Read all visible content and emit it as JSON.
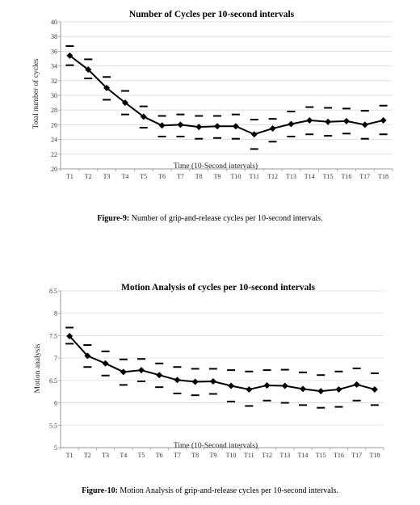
{
  "charts": [
    {
      "caption_label": "Figure-9:",
      "caption_text": " Number of grip-and-release cycles per 10-second intervals."
    },
    {
      "caption_label": "Figure-10:",
      "caption_text": " Motion Analysis of grip-and-release cycles per 10-second intervals."
    }
  ],
  "chart_data": [
    {
      "type": "line",
      "title": "Number of Cycles per 10-second intervals",
      "xlabel": "Time (10-Second intervals)",
      "ylabel": "Total number of cycles",
      "categories": [
        "T1",
        "T2",
        "T3",
        "T4",
        "T5",
        "T6",
        "T7",
        "T8",
        "T9",
        "T10",
        "T11",
        "T12",
        "T13",
        "T14",
        "T15",
        "T16",
        "T17",
        "T18"
      ],
      "ylim": [
        20,
        40
      ],
      "yticks": [
        20,
        22,
        24,
        26,
        28,
        30,
        32,
        34,
        36,
        38,
        40
      ],
      "ytick_labels": [
        "20",
        "22",
        "24",
        "26",
        "28",
        "30",
        "32",
        "34",
        "36",
        "38",
        "40"
      ],
      "grid": true,
      "series": [
        {
          "values": [
            35.4,
            33.5,
            31.0,
            29.0,
            27.1,
            25.9,
            26.0,
            25.7,
            25.8,
            25.8,
            24.7,
            25.5,
            26.1,
            26.6,
            26.4,
            26.5,
            26.0,
            26.6
          ],
          "upper": [
            36.7,
            34.9,
            32.5,
            30.6,
            28.5,
            27.2,
            27.4,
            27.2,
            27.2,
            27.4,
            26.7,
            26.8,
            27.8,
            28.4,
            28.3,
            28.2,
            27.9,
            28.6
          ],
          "lower": [
            34.1,
            32.3,
            29.4,
            27.4,
            25.6,
            24.4,
            24.4,
            24.1,
            24.2,
            24.1,
            22.7,
            23.7,
            24.4,
            24.7,
            24.5,
            24.8,
            24.1,
            24.7
          ]
        }
      ]
    },
    {
      "type": "line",
      "title": "Motion Analysis of cycles per 10-second intervals",
      "xlabel": "Time (10-Second intervals)",
      "ylabel": "Motion analysis",
      "categories": [
        "T1",
        "T2",
        "T3",
        "T4",
        "T5",
        "T6",
        "T7",
        "T8",
        "T9",
        "T10",
        "T11",
        "T12",
        "T13",
        "T14",
        "T15",
        "T16",
        "T17",
        "T18"
      ],
      "ylim": [
        5,
        8.5
      ],
      "yticks": [
        5,
        5.5,
        6,
        6.5,
        7,
        7.5,
        8,
        8.5
      ],
      "ytick_labels": [
        "5",
        "5.5",
        "6",
        "6.5",
        "7",
        "7.5",
        "8",
        "8.5"
      ],
      "grid": true,
      "series": [
        {
          "values": [
            7.49,
            7.05,
            6.88,
            6.69,
            6.73,
            6.62,
            6.51,
            6.47,
            6.48,
            6.38,
            6.3,
            6.39,
            6.38,
            6.31,
            6.26,
            6.3,
            6.41,
            6.3
          ],
          "upper": [
            7.68,
            7.29,
            7.15,
            6.97,
            6.98,
            6.88,
            6.8,
            6.76,
            6.76,
            6.73,
            6.7,
            6.73,
            6.74,
            6.68,
            6.62,
            6.7,
            6.77,
            6.66
          ],
          "lower": [
            7.32,
            6.8,
            6.61,
            6.4,
            6.48,
            6.35,
            6.21,
            6.17,
            6.2,
            6.03,
            5.93,
            6.05,
            6.0,
            5.95,
            5.89,
            5.91,
            6.05,
            5.95
          ]
        }
      ]
    }
  ]
}
